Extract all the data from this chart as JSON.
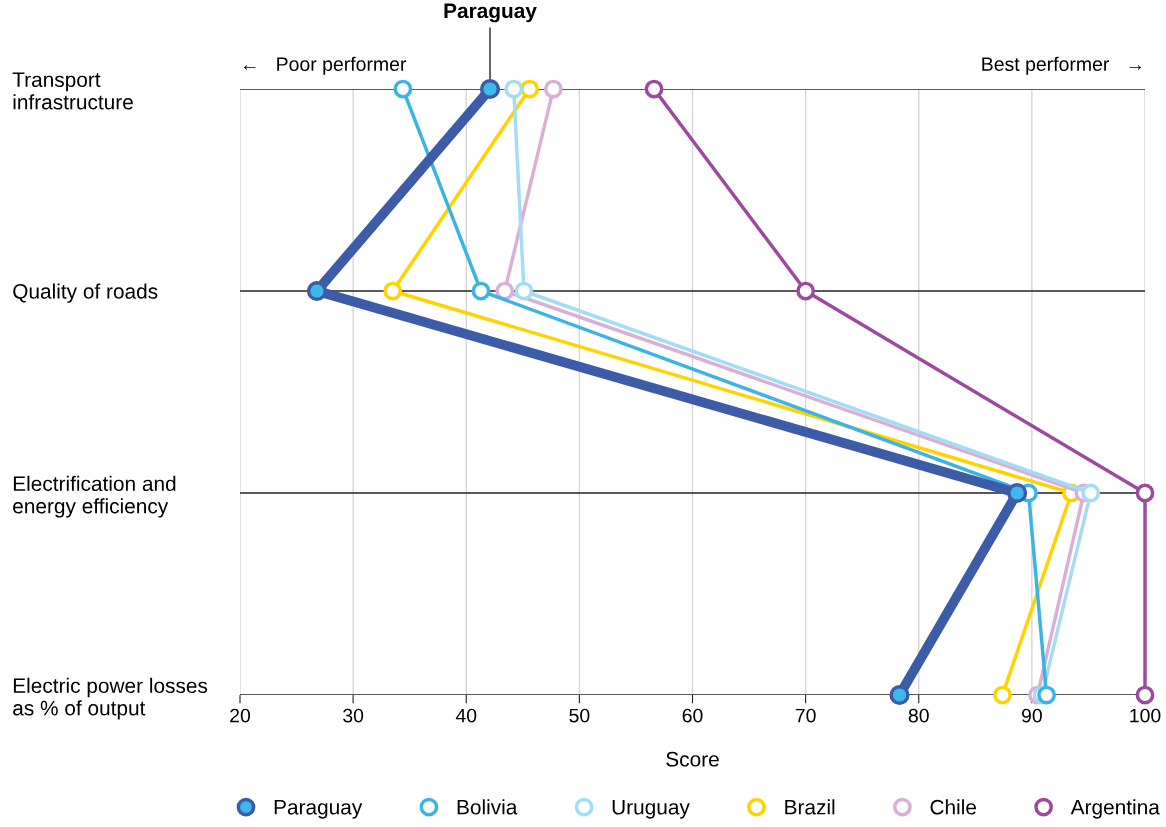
{
  "chart_data": {
    "type": "line",
    "orientation": "horizontal",
    "xlabel": "Score",
    "categories": [
      "Transport\ninfrastructure",
      "Quality of roads",
      "Electrification and\nenergy efficiency",
      "Electric power losses\nas % of output"
    ],
    "series": [
      {
        "name": "Paraguay",
        "color": "#3d5ca8",
        "values": [
          42.1,
          26.8,
          88.7,
          78.3
        ]
      },
      {
        "name": "Bolivia",
        "color": "#3bb4e5",
        "values": [
          34.4,
          41.3,
          89.7,
          91.3
        ]
      },
      {
        "name": "Uruguay",
        "color": "#a4dcf4",
        "values": [
          44.2,
          45.1,
          95.2,
          90.9
        ]
      },
      {
        "name": "Brazil",
        "color": "#ffd200",
        "values": [
          45.6,
          33.5,
          93.5,
          87.4
        ]
      },
      {
        "name": "Chile",
        "color": "#d8b0d6",
        "values": [
          47.7,
          43.4,
          94.6,
          90.5
        ]
      },
      {
        "name": "Argentina",
        "color": "#9c4a9e",
        "values": [
          56.6,
          70.0,
          100,
          100
        ]
      }
    ],
    "xlim": [
      20,
      100
    ],
    "xticks": [
      20,
      30,
      40,
      50,
      60,
      70,
      80,
      90,
      100
    ],
    "grid": true,
    "legend": "bottom",
    "marker": "circle",
    "line_style": "solid",
    "annotations": [
      {
        "text": "Paraguay",
        "x": 42.1,
        "y": "Transport\ninfrastructure"
      },
      "←   Poor performer",
      "Best performer   →"
    ]
  }
}
